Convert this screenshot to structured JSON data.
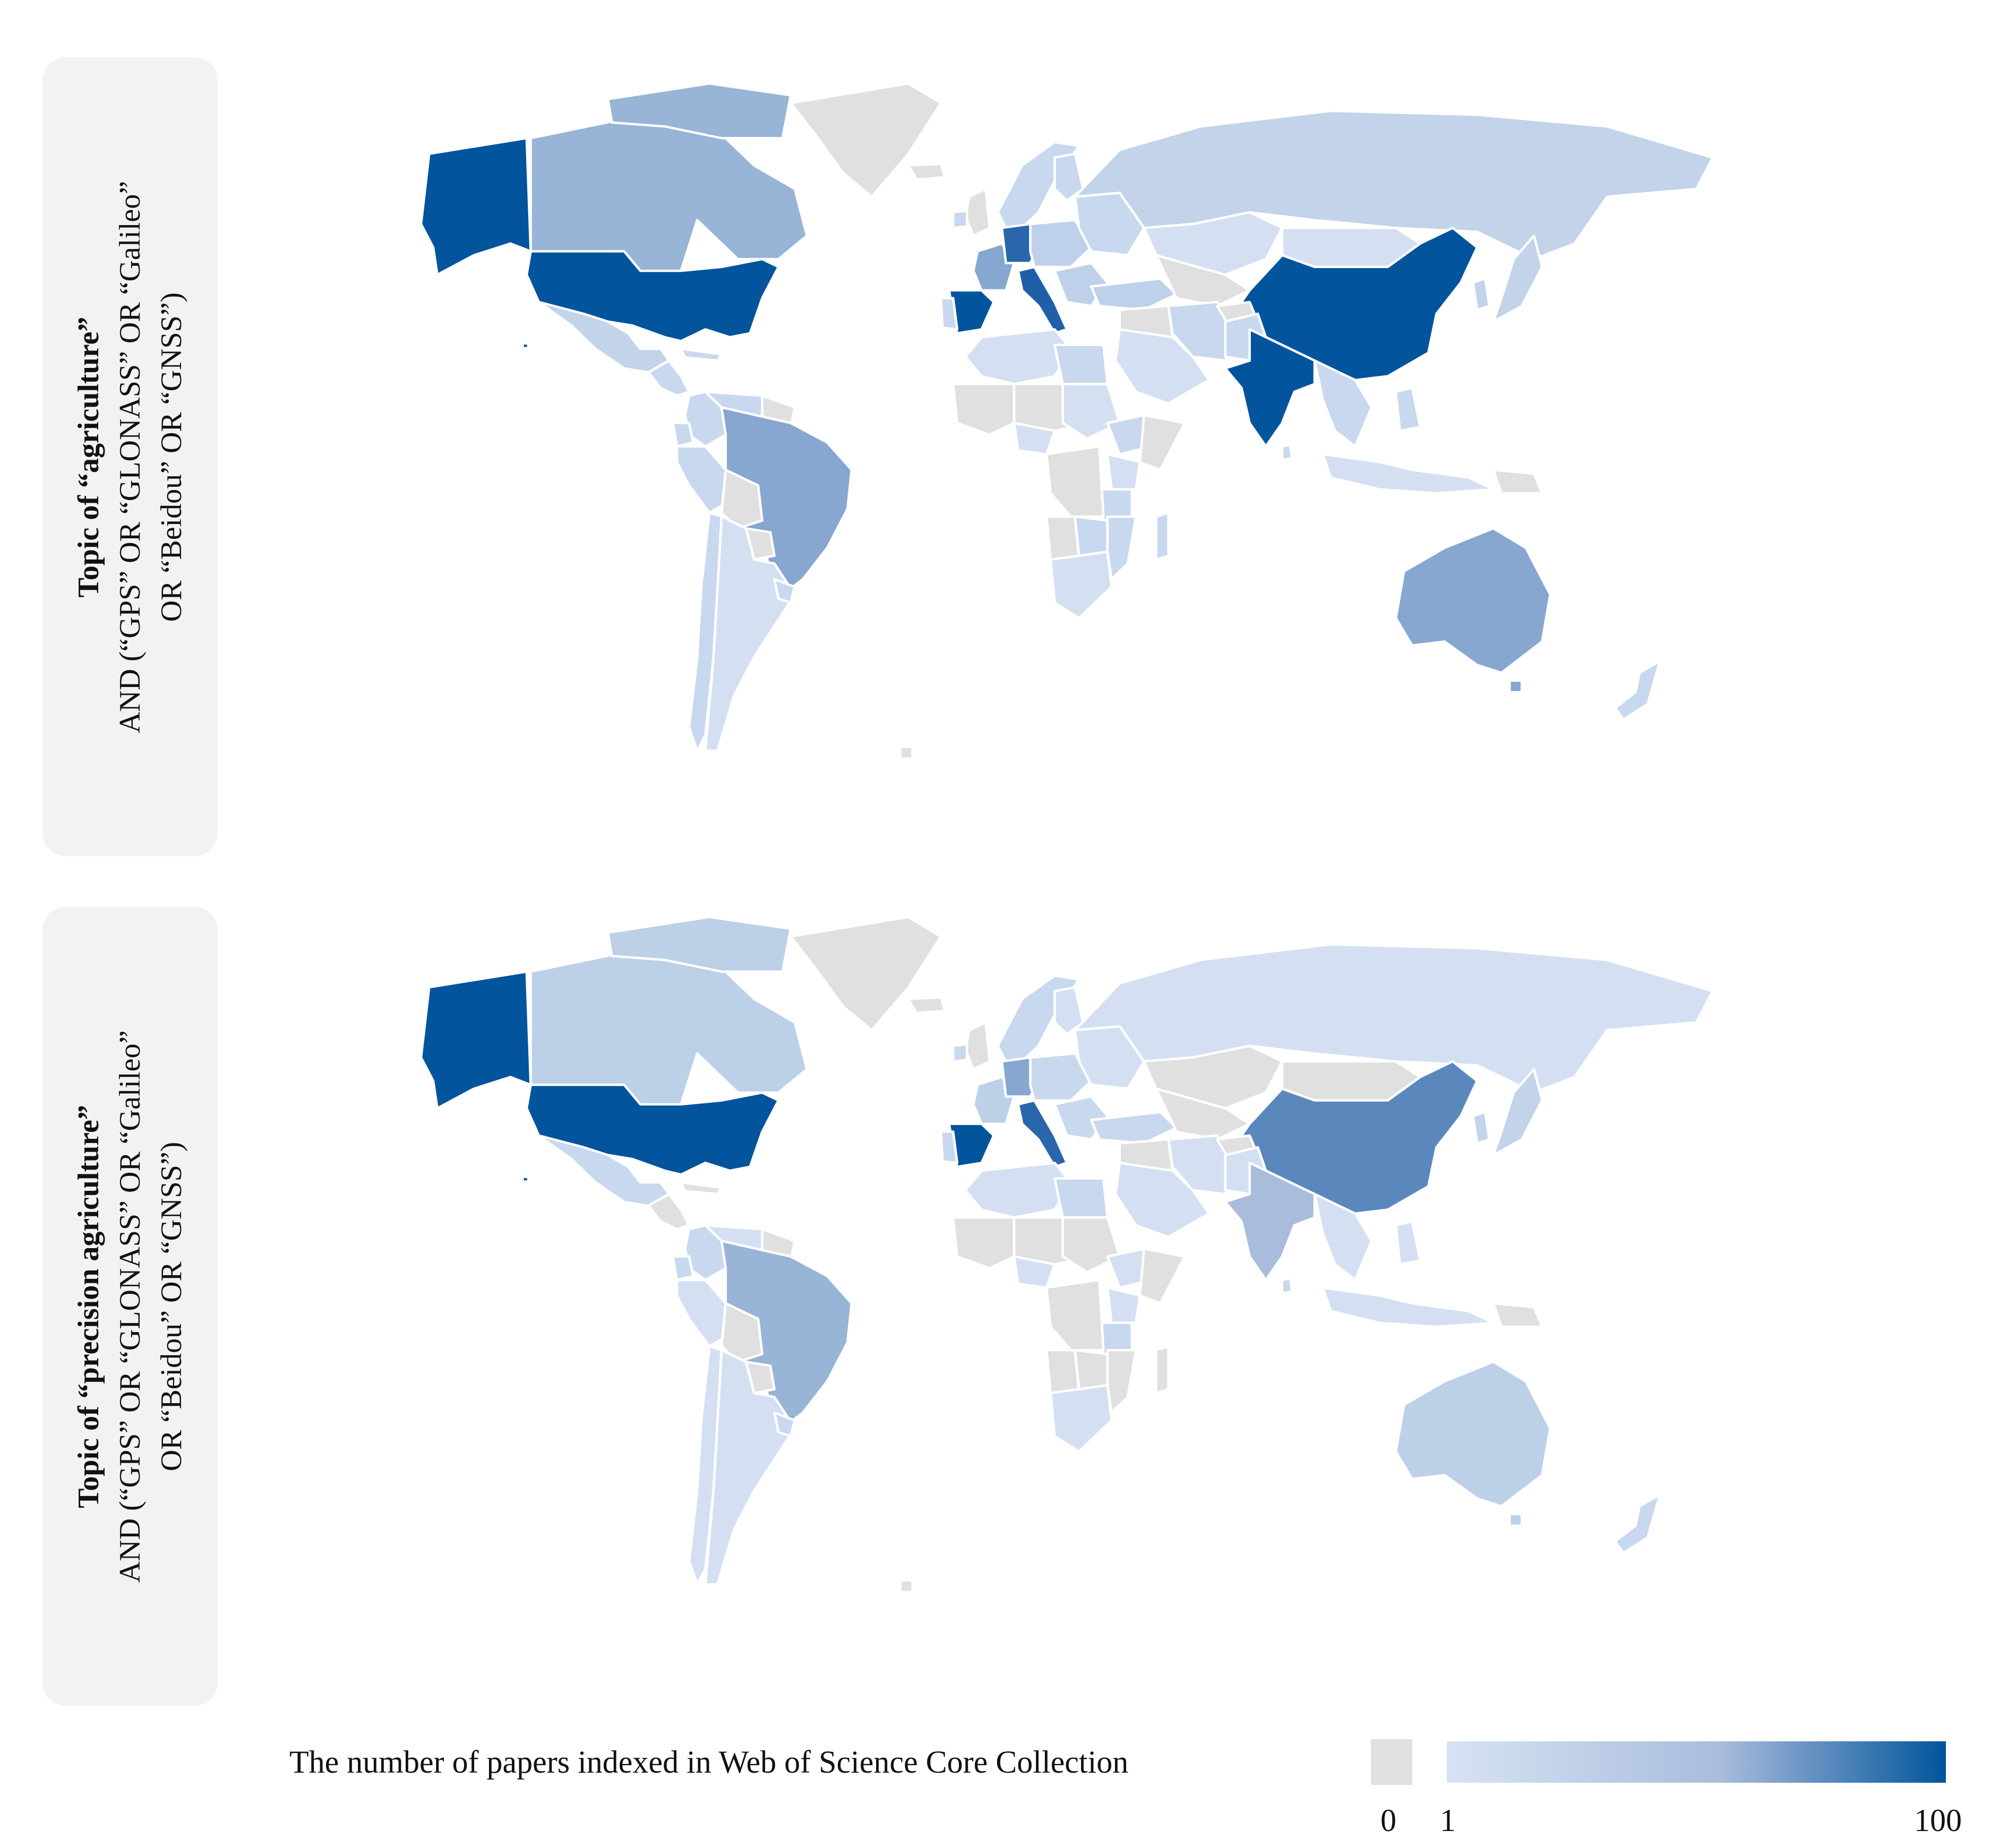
{
  "panels": [
    {
      "label_bold": "Topic of “agriculture”",
      "label_line2": "AND (“GPS” OR “GLONASS” OR “Galileo”",
      "label_line3": "OR “Beidou” OR “GNSS”)",
      "countries": {
        "USA": "#02549c",
        "Alaska": "#02549c",
        "Hawaii": "#02549c",
        "Canada": "#98b4d6",
        "CanadaIslands": "#98b4d6",
        "Greenland": "#e0e0e0",
        "Mexico": "#c2d3ea",
        "CentralAmerica": "#c8d8ee",
        "Cuba": "#c8d8ee",
        "Colombia": "#c8d8ee",
        "Venezuela": "#c8d8ee",
        "Guianas": "#e0e0e0",
        "Ecuador": "#c8d8ee",
        "Peru": "#c8d8ee",
        "Bolivia": "#e0e0e0",
        "Brazil": "#87a6d0",
        "Paraguay": "#e0e0e0",
        "Chile": "#c8d8ee",
        "Argentina": "#d4e0f2",
        "Uruguay": "#c8d8ee",
        "Iceland": "#e0e0e0",
        "UK": "#e0e0e0",
        "Ireland": "#c8d8ee",
        "Scandinavia": "#c8d8ee",
        "Finland": "#c8d8ee",
        "France": "#87a6d0",
        "Spain": "#02549c",
        "Portugal": "#c8d8ee",
        "Germany": "#2a66ac",
        "Italy": "#1f5fa8",
        "CentralEurope": "#bfd0ea",
        "EasternEurope": "#c8d8ee",
        "Balkans": "#bfd0ea",
        "Turkey": "#bfd0ea",
        "Russia": "#c2d3ea",
        "Kazakhstan": "#d4e0f2",
        "CentralAsia": "#e0e0e0",
        "Mongolia": "#d4e0f2",
        "China": "#02549c",
        "Korea": "#c2d3ea",
        "Japan": "#c2d3ea",
        "Iran": "#c8d8ee",
        "MiddleEast": "#e0e0e0",
        "Arabia": "#d4e0f2",
        "Afghanistan": "#e0e0e0",
        "Pakistan": "#c8d8ee",
        "India": "#02549c",
        "SriLanka": "#c8d8ee",
        "SEAsia": "#c8d8ee",
        "Philippines": "#c8d8ee",
        "Indonesia": "#d4e0f2",
        "PNG": "#e0e0e0",
        "Australia": "#87a6d0",
        "Tasmania": "#87a6d0",
        "NewZealand": "#c8d8ee",
        "NorthAfrica": "#d4e0f2",
        "Egypt": "#c8d8ee",
        "Sahel": "#e0e0e0",
        "WestAfrica": "#e0e0e0",
        "Nigeria": "#d4e0f2",
        "Sudan": "#d4e0f2",
        "Ethiopia": "#c8d8ee",
        "Somalia": "#e0e0e0",
        "Kenya": "#d4e0f2",
        "Tanzania": "#c8d8ee",
        "Congo": "#e0e0e0",
        "Angola": "#e0e0e0",
        "Zambia": "#c8d8ee",
        "Mozambique": "#c8d8ee",
        "SouthAfrica": "#d4e0f2",
        "Madagascar": "#c8d8ee",
        "Antarctic": "#e0e0e0"
      }
    },
    {
      "label_bold": "Topic of “precision agriculture”",
      "label_line2": "AND (“GPS” OR “GLONASS” OR “Galileo”",
      "label_line3": "OR “Beidou” OR “GNSS”)",
      "countries": {
        "USA": "#02549c",
        "Alaska": "#02549c",
        "Hawaii": "#02549c",
        "Canada": "#bcd0e8",
        "CanadaIslands": "#bcd0e8",
        "Greenland": "#e0e0e0",
        "Mexico": "#c8d8ee",
        "CentralAmerica": "#e0e0e0",
        "Cuba": "#e0e0e0",
        "Colombia": "#c8d8ee",
        "Venezuela": "#d4e0f2",
        "Guianas": "#e0e0e0",
        "Ecuador": "#c8d8ee",
        "Peru": "#d4e0f2",
        "Bolivia": "#e0e0e0",
        "Brazil": "#98b4d6",
        "Paraguay": "#e0e0e0",
        "Chile": "#d4e0f2",
        "Argentina": "#d4e0f2",
        "Uruguay": "#c8d8ee",
        "Iceland": "#e0e0e0",
        "UK": "#e0e0e0",
        "Ireland": "#c8d8ee",
        "Scandinavia": "#c8d8ee",
        "Finland": "#d4e0f2",
        "France": "#bcd0e8",
        "Spain": "#02549c",
        "Portugal": "#c8d8ee",
        "Germany": "#87a6d0",
        "Italy": "#2a66ac",
        "CentralEurope": "#c8d8ee",
        "EasternEurope": "#d4e0f2",
        "Balkans": "#c8d8ee",
        "Turkey": "#c8d8ee",
        "Russia": "#d4e0f2",
        "Kazakhstan": "#e0e0e0",
        "CentralAsia": "#e0e0e0",
        "Mongolia": "#e0e0e0",
        "China": "#5b88bc",
        "Korea": "#c2d3ea",
        "Japan": "#c2d3ea",
        "Iran": "#d4e0f2",
        "MiddleEast": "#e0e0e0",
        "Arabia": "#d4e0f2",
        "Afghanistan": "#e0e0e0",
        "Pakistan": "#d4e0f2",
        "India": "#a9bcdc",
        "SriLanka": "#c8d8ee",
        "SEAsia": "#d4e0f2",
        "Philippines": "#d4e0f2",
        "Indonesia": "#d4e0f2",
        "PNG": "#e0e0e0",
        "Australia": "#bcd0e8",
        "Tasmania": "#bcd0e8",
        "NewZealand": "#c8d8ee",
        "NorthAfrica": "#d4e0f2",
        "Egypt": "#c8d8ee",
        "Sahel": "#e0e0e0",
        "WestAfrica": "#e0e0e0",
        "Nigeria": "#d4e0f2",
        "Sudan": "#e0e0e0",
        "Ethiopia": "#d4e0f2",
        "Somalia": "#e0e0e0",
        "Kenya": "#d4e0f2",
        "Tanzania": "#c8d8ee",
        "Congo": "#e0e0e0",
        "Angola": "#e0e0e0",
        "Zambia": "#e0e0e0",
        "Mozambique": "#e0e0e0",
        "SouthAfrica": "#d4e0f2",
        "Madagascar": "#e0e0e0",
        "Antarctic": "#e0e0e0"
      }
    }
  ],
  "legend": {
    "title": "The number of papers indexed in Web of Science Core Collection",
    "zero_label": "0",
    "min_label": "1",
    "max_label": "100",
    "zero_color": "#e0e0e0",
    "gradient_start": "#d7e3f4",
    "gradient_end": "#02549c"
  }
}
